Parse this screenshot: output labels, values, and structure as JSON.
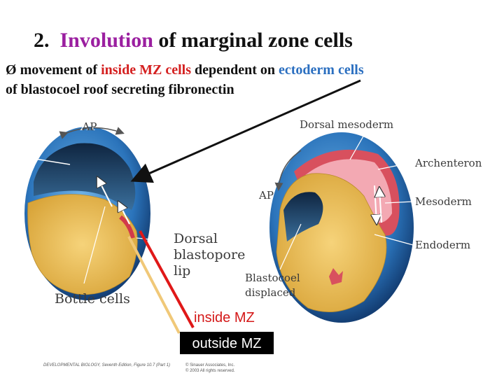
{
  "title": {
    "number": "2.",
    "highlight": "Involution",
    "rest": "of marginal zone cells"
  },
  "bullet": {
    "marker": "Ø",
    "parts": [
      "movement of ",
      "inside MZ cells",
      " dependent on ",
      "ectoderm cells"
    ],
    "line2": "of blastocoel roof secreting fibronectin"
  },
  "figure_left": {
    "ap": "AP",
    "lip_lines": [
      "Dorsal",
      "blastopore",
      "lip"
    ],
    "bottle": "Bottle cells"
  },
  "figure_right": {
    "dorsal_mesoderm": "Dorsal mesoderm",
    "archenteron": "Archenteron",
    "ap": "AP",
    "mesoderm": "Mesoderm",
    "endoderm": "Endoderm",
    "blastocoel_lines": [
      "Blastocoel",
      "displaced"
    ]
  },
  "annotations": {
    "inside": "inside MZ",
    "outside": "outside MZ"
  },
  "caption": {
    "source": "DEVELOPMENTAL BIOLOGY, Seventh Edition, Figure 10.7 (Part 1)",
    "copyright1": "© Sinauer Associates, Inc.",
    "copyright2": "© 2003 All rights reserved."
  }
}
